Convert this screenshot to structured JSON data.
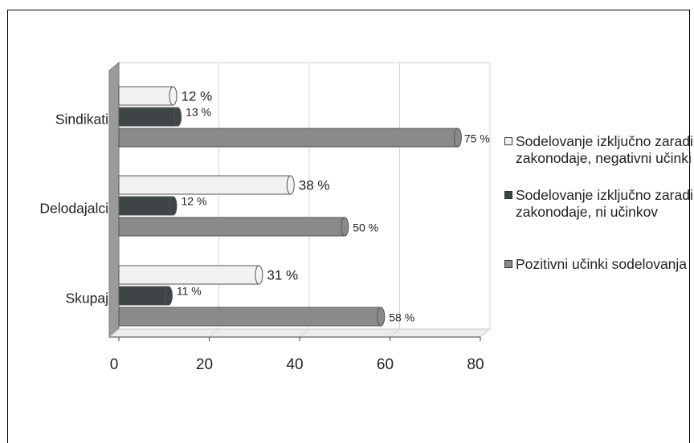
{
  "chart_data": {
    "type": "bar",
    "orientation": "horizontal",
    "categories": [
      "Sindikati",
      "Delodajalci",
      "Skupaj"
    ],
    "series": [
      {
        "name": "Sodelovanje izključno zaradi zakonodaje, negativni učinki",
        "values": [
          12,
          38,
          31
        ],
        "labels": [
          "12 %",
          "38 %",
          "31 %"
        ],
        "color": "#f2f2f2"
      },
      {
        "name": "Sodelovanje izključno zaradi zakonodaje, ni učinkov",
        "values": [
          13,
          12,
          11
        ],
        "labels": [
          "13 %",
          "12 %",
          "11 %"
        ],
        "color": "#3f4546"
      },
      {
        "name": "Pozitivni učinki sodelovanja",
        "values": [
          75,
          50,
          58
        ],
        "labels": [
          "75 %",
          "50 %",
          "58 %"
        ],
        "color": "#8a8a8a"
      }
    ],
    "xlim": [
      0,
      80
    ],
    "xticks": [
      "0",
      "20",
      "40",
      "60",
      "80"
    ],
    "grid": true,
    "legend_position": "right",
    "title": "",
    "xlabel": "",
    "ylabel": ""
  }
}
